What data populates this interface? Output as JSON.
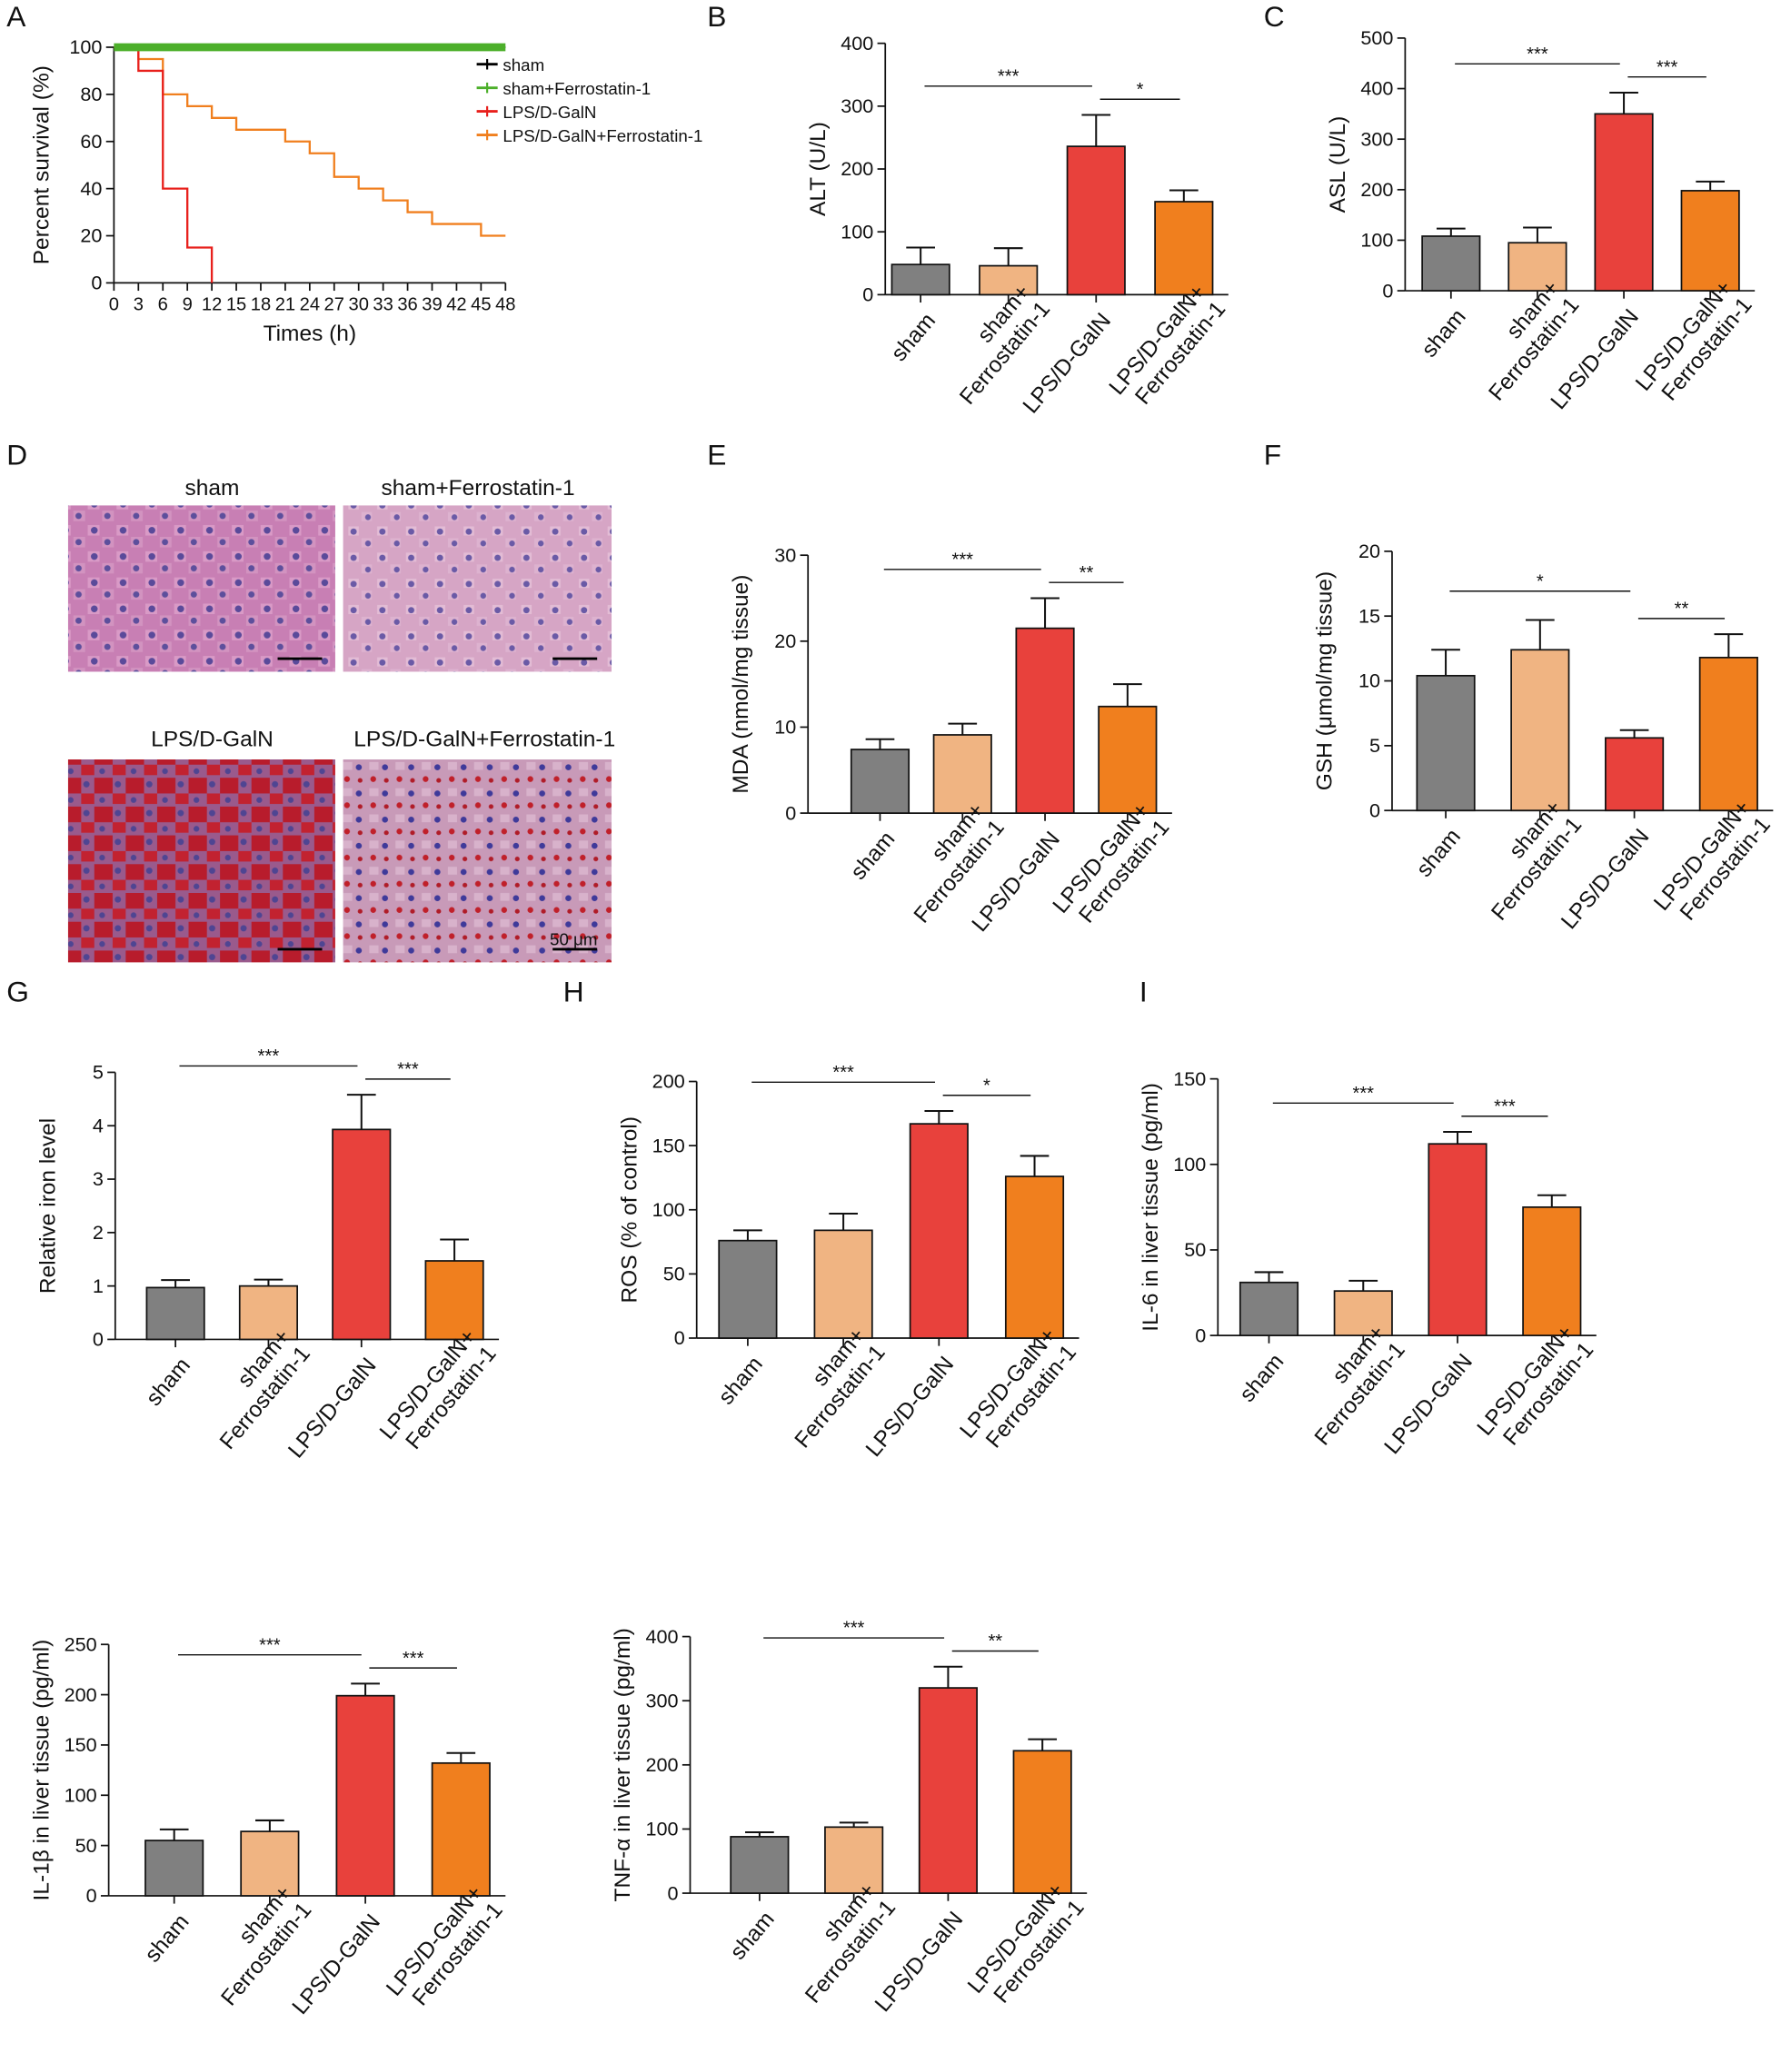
{
  "chart_data": [
    {
      "type": "line",
      "panel": "A",
      "xlabel": "Times (h)",
      "ylabel": "Percent survival (%)",
      "xlim": [
        0,
        48
      ],
      "xticks": [
        0,
        3,
        6,
        9,
        12,
        15,
        18,
        21,
        24,
        27,
        30,
        33,
        36,
        39,
        42,
        45,
        48
      ],
      "ylim": [
        0,
        100
      ],
      "yticks": [
        0,
        20,
        40,
        60,
        80,
        100
      ],
      "legend": "upper right",
      "series": [
        {
          "name": "sham",
          "color": "#000000",
          "x": [
            0,
            48
          ],
          "values": [
            100,
            100
          ]
        },
        {
          "name": "sham+Ferrostatin-1",
          "color": "#4caf2a",
          "x": [
            0,
            48
          ],
          "values": [
            100,
            100
          ]
        },
        {
          "name": "LPS/D-GalN",
          "color": "#e8201c",
          "x": [
            0,
            3,
            6,
            9,
            12
          ],
          "values": [
            100,
            90,
            40,
            15,
            0
          ]
        },
        {
          "name": "LPS/D-GalN+Ferrostatin-1",
          "color": "#f07f1e",
          "x": [
            0,
            3,
            6,
            9,
            12,
            15,
            21,
            24,
            27,
            30,
            33,
            36,
            39,
            45,
            48
          ],
          "values": [
            100,
            95,
            80,
            75,
            70,
            65,
            60,
            55,
            45,
            40,
            35,
            30,
            25,
            20,
            20
          ]
        }
      ]
    },
    {
      "type": "bar",
      "panel": "B",
      "ylabel": "ALT (U/L)",
      "categories": [
        [
          "sham"
        ],
        [
          "sham+",
          "Ferrostatin-1"
        ],
        [
          "LPS/D-GalN"
        ],
        [
          "LPS/D-GalN+",
          "Ferrostatin-1"
        ]
      ],
      "colors": [
        "#808080",
        "#f0b482",
        "#e8413c",
        "#f07f1e"
      ],
      "values": [
        48,
        46,
        236,
        148
      ],
      "errors": [
        27,
        28,
        50,
        18
      ],
      "ylim": [
        0,
        400
      ],
      "yticks": [
        0,
        100,
        200,
        300,
        400
      ],
      "significance": [
        {
          "from": 0,
          "to": 2,
          "label": "***"
        },
        {
          "from": 2,
          "to": 3,
          "label": "*"
        }
      ]
    },
    {
      "type": "bar",
      "panel": "C",
      "ylabel": "ASL (U/L)",
      "categories": [
        [
          "sham"
        ],
        [
          "sham+",
          "Ferrostatin-1"
        ],
        [
          "LPS/D-GalN"
        ],
        [
          "LPS/D-GalN+",
          "Ferrostatin-1"
        ]
      ],
      "colors": [
        "#808080",
        "#f0b482",
        "#e8413c",
        "#f07f1e"
      ],
      "values": [
        108,
        95,
        350,
        198
      ],
      "errors": [
        15,
        30,
        42,
        18
      ],
      "ylim": [
        0,
        500
      ],
      "yticks": [
        0,
        100,
        200,
        300,
        400,
        500
      ],
      "significance": [
        {
          "from": 0,
          "to": 2,
          "label": "***"
        },
        {
          "from": 2,
          "to": 3,
          "label": "***"
        }
      ]
    },
    {
      "type": "bar",
      "panel": "E",
      "ylabel": "MDA (nmol/mg tissue)",
      "categories": [
        [
          "sham"
        ],
        [
          "sham+",
          "Ferrostatin-1"
        ],
        [
          "LPS/D-GalN"
        ],
        [
          "LPS/D-GalN+",
          "Ferrostatin-1"
        ]
      ],
      "colors": [
        "#808080",
        "#f0b482",
        "#e8413c",
        "#f07f1e"
      ],
      "values": [
        7.4,
        9.1,
        21.5,
        12.4
      ],
      "errors": [
        1.2,
        1.3,
        3.5,
        2.6
      ],
      "ylim": [
        0,
        30
      ],
      "yticks": [
        0,
        10,
        20,
        30
      ],
      "significance": [
        {
          "from": 0,
          "to": 2,
          "label": "***"
        },
        {
          "from": 2,
          "to": 3,
          "label": "**"
        }
      ]
    },
    {
      "type": "bar",
      "panel": "F",
      "ylabel": "GSH (μmol/mg tissue)",
      "categories": [
        [
          "sham"
        ],
        [
          "sham+",
          "Ferrostatin-1"
        ],
        [
          "LPS/D-GalN"
        ],
        [
          "LPS/D-GalN+",
          "Ferrostatin-1"
        ]
      ],
      "colors": [
        "#808080",
        "#f0b482",
        "#e8413c",
        "#f07f1e"
      ],
      "values": [
        10.4,
        12.4,
        5.6,
        11.8
      ],
      "errors": [
        2.0,
        2.3,
        0.6,
        1.8
      ],
      "ylim": [
        0,
        20
      ],
      "yticks": [
        0,
        5,
        10,
        15,
        20
      ],
      "significance": [
        {
          "from": 0,
          "to": 2,
          "label": "*"
        },
        {
          "from": 2,
          "to": 3,
          "label": "**"
        }
      ]
    },
    {
      "type": "bar",
      "panel": "G",
      "ylabel": "Relative iron level",
      "categories": [
        [
          "sham"
        ],
        [
          "sham+",
          "Ferrostatin-1"
        ],
        [
          "LPS/D-GalN"
        ],
        [
          "LPS/D-GalN+",
          "Ferrostatin-1"
        ]
      ],
      "colors": [
        "#808080",
        "#f0b482",
        "#e8413c",
        "#f07f1e"
      ],
      "values": [
        0.97,
        1.0,
        3.93,
        1.47
      ],
      "errors": [
        0.14,
        0.12,
        0.65,
        0.4
      ],
      "ylim": [
        0,
        5
      ],
      "yticks": [
        0,
        1,
        2,
        3,
        4,
        5
      ],
      "significance": [
        {
          "from": 0,
          "to": 2,
          "label": "***"
        },
        {
          "from": 2,
          "to": 3,
          "label": "***"
        }
      ]
    },
    {
      "type": "bar",
      "panel": "H",
      "ylabel": "ROS (% of  control)",
      "categories": [
        [
          "sham"
        ],
        [
          "sham+",
          "Ferrostatin-1"
        ],
        [
          "LPS/D-GalN"
        ],
        [
          "LPS/D-GalN+",
          "Ferrostatin-1"
        ]
      ],
      "colors": [
        "#808080",
        "#f0b482",
        "#e8413c",
        "#f07f1e"
      ],
      "values": [
        76,
        84,
        167,
        126
      ],
      "errors": [
        8,
        13,
        10,
        16
      ],
      "ylim": [
        0,
        200
      ],
      "yticks": [
        0,
        50,
        100,
        150,
        200
      ],
      "significance": [
        {
          "from": 0,
          "to": 2,
          "label": "***"
        },
        {
          "from": 2,
          "to": 3,
          "label": "*"
        }
      ]
    },
    {
      "type": "bar",
      "panel": "I",
      "ylabel": "IL-6 in liver tissue (pg/ml)",
      "categories": [
        [
          "sham"
        ],
        [
          "sham+",
          "Ferrostatin-1"
        ],
        [
          "LPS/D-GalN"
        ],
        [
          "LPS/D-GalN+",
          "Ferrostatin-1"
        ]
      ],
      "colors": [
        "#808080",
        "#f0b482",
        "#e8413c",
        "#f07f1e"
      ],
      "values": [
        31,
        26,
        112,
        75
      ],
      "errors": [
        6,
        6,
        7,
        7
      ],
      "ylim": [
        0,
        150
      ],
      "yticks": [
        0,
        50,
        100,
        150
      ],
      "significance": [
        {
          "from": 0,
          "to": 2,
          "label": "***"
        },
        {
          "from": 2,
          "to": 3,
          "label": "***"
        }
      ]
    },
    {
      "type": "bar",
      "ylabel": "IL-1β in liver tissue (pg/ml)",
      "categories": [
        [
          "sham"
        ],
        [
          "sham+",
          "Ferrostatin-1"
        ],
        [
          "LPS/D-GalN"
        ],
        [
          "LPS/D-GalN+",
          "Ferrostatin-1"
        ]
      ],
      "colors": [
        "#808080",
        "#f0b482",
        "#e8413c",
        "#f07f1e"
      ],
      "values": [
        55,
        64,
        199,
        132
      ],
      "errors": [
        11,
        11,
        12,
        10
      ],
      "ylim": [
        0,
        250
      ],
      "yticks": [
        0,
        50,
        100,
        150,
        200,
        250
      ],
      "significance": [
        {
          "from": 0,
          "to": 2,
          "label": "***"
        },
        {
          "from": 2,
          "to": 3,
          "label": "***"
        }
      ]
    },
    {
      "type": "bar",
      "ylabel": "TNF-α in liver tissue (pg/ml)",
      "categories": [
        [
          "sham"
        ],
        [
          "sham+",
          "Ferrostatin-1"
        ],
        [
          "LPS/D-GalN"
        ],
        [
          "LPS/D-GalN+",
          "Ferrostatin-1"
        ]
      ],
      "colors": [
        "#808080",
        "#f0b482",
        "#e8413c",
        "#f07f1e"
      ],
      "values": [
        88,
        103,
        320,
        222
      ],
      "errors": [
        7,
        7,
        33,
        18
      ],
      "ylim": [
        0,
        400
      ],
      "yticks": [
        0,
        100,
        200,
        300,
        400
      ],
      "significance": [
        {
          "from": 0,
          "to": 2,
          "label": "***"
        },
        {
          "from": 2,
          "to": 3,
          "label": "**"
        }
      ]
    }
  ],
  "histology": {
    "panel": "D",
    "titles": [
      "sham",
      "sham+Ferrostatin-1",
      "LPS/D-GalN",
      "LPS/D-GalN+Ferrostatin-1"
    ],
    "scale_bar": "50 μm"
  }
}
